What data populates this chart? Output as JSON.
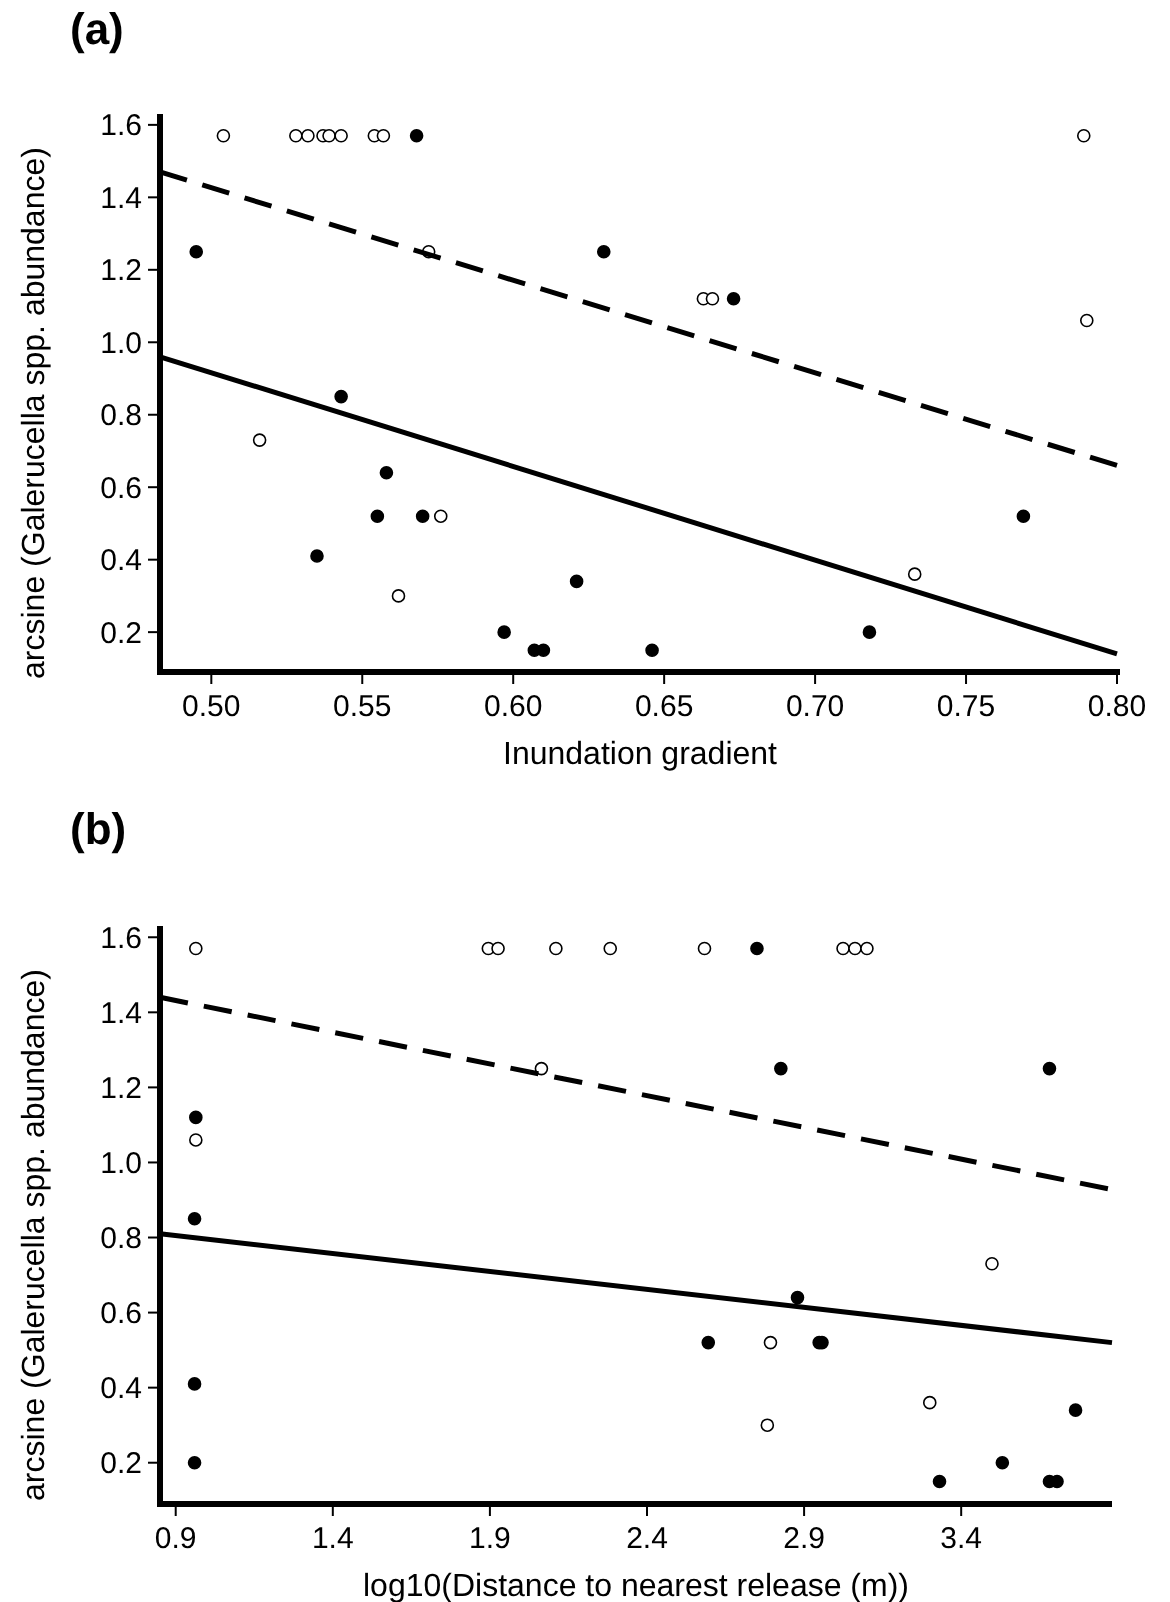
{
  "chart_data": [
    {
      "type": "scatter",
      "title": "(a)",
      "xlabel": "Inundation gradient",
      "ylabel": "arcsine (Galerucella spp. abundance)",
      "xlim": [
        0.483,
        0.801
      ],
      "ylim": [
        0.09,
        1.63
      ],
      "xticks": [
        {
          "value": 0.5,
          "label": "0.50"
        },
        {
          "value": 0.55,
          "label": "0.55"
        },
        {
          "value": 0.6,
          "label": "0.60"
        },
        {
          "value": 0.65,
          "label": "0.65"
        },
        {
          "value": 0.7,
          "label": "0.70"
        },
        {
          "value": 0.75,
          "label": "0.75"
        },
        {
          "value": 0.8,
          "label": "0.80"
        }
      ],
      "yticks": [
        {
          "value": 0.2,
          "label": "0.2"
        },
        {
          "value": 0.4,
          "label": "0.4"
        },
        {
          "value": 0.6,
          "label": "0.6"
        },
        {
          "value": 0.8,
          "label": "0.8"
        },
        {
          "value": 1.0,
          "label": "1.0"
        },
        {
          "value": 1.2,
          "label": "1.2"
        },
        {
          "value": 1.4,
          "label": "1.4"
        },
        {
          "value": 1.6,
          "label": "1.6"
        }
      ],
      "marker": "circle",
      "series": [
        {
          "color": "#000000",
          "x": [
            0.568,
            0.495,
            0.63,
            0.673,
            0.543,
            0.558,
            0.555,
            0.57,
            0.535,
            0.597,
            0.607,
            0.61,
            0.621,
            0.646,
            0.718,
            0.769
          ],
          "values": [
            1.57,
            1.25,
            1.25,
            1.12,
            0.85,
            0.64,
            0.52,
            0.52,
            0.41,
            0.2,
            0.15,
            0.15,
            0.34,
            0.15,
            0.2,
            0.52
          ]
        },
        {
          "color": "#ffffff",
          "x": [
            0.504,
            0.528,
            0.532,
            0.537,
            0.539,
            0.543,
            0.554,
            0.557,
            0.789,
            0.572,
            0.663,
            0.666,
            0.79,
            0.516,
            0.576,
            0.562,
            0.733
          ],
          "values": [
            1.57,
            1.57,
            1.57,
            1.57,
            1.57,
            1.57,
            1.57,
            1.57,
            1.57,
            1.25,
            1.12,
            1.12,
            1.06,
            0.73,
            0.52,
            0.3,
            0.36
          ]
        },
        {
          "type": "line",
          "color": "#000000",
          "line_style": "solid",
          "marker": "none",
          "x": [
            0.483,
            0.8
          ],
          "values": [
            0.96,
            0.14
          ]
        },
        {
          "type": "line",
          "color": "#000000",
          "line_style": "dashed",
          "marker": "none",
          "x": [
            0.483,
            0.8
          ],
          "values": [
            1.47,
            0.66
          ]
        }
      ]
    },
    {
      "type": "scatter",
      "title": "(b)",
      "xlabel": "log10(Distance to nearest release (m))",
      "ylabel": "arcsine (Galerucella spp. abundance)",
      "xlim": [
        0.85,
        3.88
      ],
      "ylim": [
        0.09,
        1.63
      ],
      "xticks": [
        {
          "value": 0.9,
          "label": "0.9"
        },
        {
          "value": 1.4,
          "label": "1.4"
        },
        {
          "value": 1.9,
          "label": "1.9"
        },
        {
          "value": 2.4,
          "label": "2.4"
        },
        {
          "value": 2.9,
          "label": "2.9"
        },
        {
          "value": 3.4,
          "label": "3.4"
        }
      ],
      "yticks": [
        {
          "value": 0.2,
          "label": "0.2"
        },
        {
          "value": 0.4,
          "label": "0.4"
        },
        {
          "value": 0.6,
          "label": "0.6"
        },
        {
          "value": 0.8,
          "label": "0.8"
        },
        {
          "value": 1.0,
          "label": "1.0"
        },
        {
          "value": 1.2,
          "label": "1.2"
        },
        {
          "value": 1.4,
          "label": "1.4"
        },
        {
          "value": 1.6,
          "label": "1.6"
        }
      ],
      "marker": "circle",
      "series": [
        {
          "color": "#000000",
          "x": [
            2.75,
            2.826,
            3.681,
            0.964,
            0.96,
            0.96,
            0.96,
            2.595,
            2.879,
            2.948,
            2.957,
            3.331,
            3.531,
            3.681,
            3.705,
            3.764
          ],
          "values": [
            1.57,
            1.25,
            1.25,
            1.12,
            0.85,
            0.41,
            0.2,
            0.52,
            0.64,
            0.52,
            0.52,
            0.15,
            0.2,
            0.15,
            0.15,
            0.34
          ]
        },
        {
          "color": "#ffffff",
          "x": [
            0.964,
            1.895,
            1.926,
            2.11,
            2.283,
            2.583,
            3.024,
            3.062,
            3.1,
            2.064,
            0.964,
            2.793,
            2.783,
            3.3,
            3.498
          ],
          "values": [
            1.57,
            1.57,
            1.57,
            1.57,
            1.57,
            1.57,
            1.57,
            1.57,
            1.57,
            1.25,
            1.06,
            0.52,
            0.3,
            0.36,
            0.73
          ]
        },
        {
          "type": "line",
          "color": "#000000",
          "line_style": "solid",
          "marker": "none",
          "x": [
            0.85,
            3.88
          ],
          "values": [
            0.81,
            0.52
          ]
        },
        {
          "type": "line",
          "color": "#000000",
          "line_style": "dashed",
          "marker": "none",
          "x": [
            0.85,
            3.867
          ],
          "values": [
            1.44,
            0.93
          ]
        }
      ]
    }
  ]
}
